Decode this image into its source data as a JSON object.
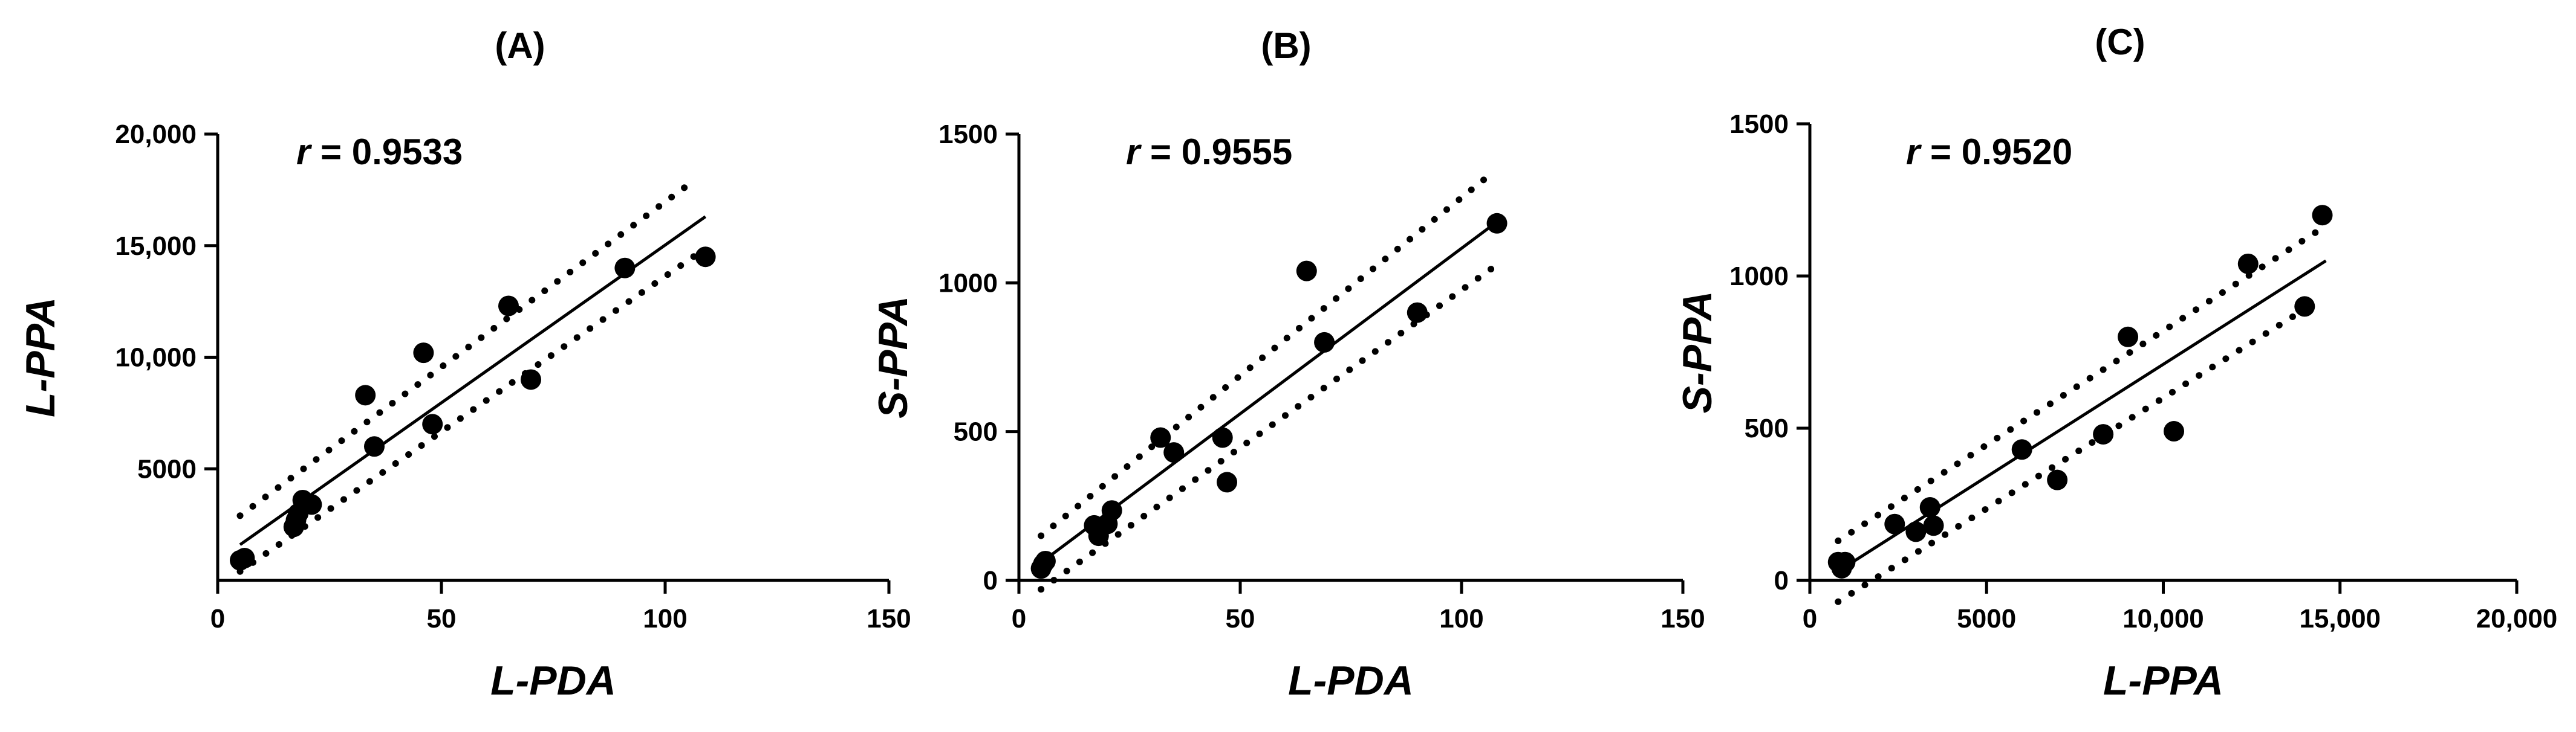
{
  "chart_data": [
    {
      "type": "scatter",
      "panel_label": "(A)",
      "annotation": {
        "var": "r",
        "text": " = 0.9533"
      },
      "xlabel": "L-PDA",
      "ylabel": "L-PPA",
      "xlim": [
        0,
        150
      ],
      "ylim": [
        0,
        20000
      ],
      "xticks": [
        0,
        50,
        100,
        150
      ],
      "xtick_labels": [
        "0",
        "50",
        "100",
        "150"
      ],
      "yticks": [
        5000,
        10000,
        15000,
        20000
      ],
      "ytick_labels": [
        "5000",
        "10,000",
        "15,000",
        "20,000"
      ],
      "points": [
        [
          5,
          900
        ],
        [
          6,
          1000
        ],
        [
          17,
          2400
        ],
        [
          17.5,
          2700
        ],
        [
          18,
          3000
        ],
        [
          19,
          3600
        ],
        [
          21,
          3400
        ],
        [
          33,
          8300
        ],
        [
          35,
          6000
        ],
        [
          46,
          10200
        ],
        [
          48,
          7000
        ],
        [
          65,
          12300
        ],
        [
          70,
          9000
        ],
        [
          91,
          14000
        ],
        [
          109,
          14500
        ]
      ],
      "fit": {
        "x": [
          5,
          109
        ],
        "y": [
          1600,
          16300
        ]
      },
      "ci_upper": {
        "x": [
          5,
          107
        ],
        "y": [
          2900,
          18000
        ]
      },
      "ci_lower": {
        "x": [
          5,
          107
        ],
        "y": [
          400,
          14600
        ]
      }
    },
    {
      "type": "scatter",
      "panel_label": "(B)",
      "annotation": {
        "var": "r",
        "text": " = 0.9555"
      },
      "xlabel": "L-PDA",
      "ylabel": "S-PPA",
      "xlim": [
        0,
        150
      ],
      "ylim": [
        0,
        1500
      ],
      "xticks": [
        0,
        50,
        100,
        150
      ],
      "xtick_labels": [
        "0",
        "50",
        "100",
        "150"
      ],
      "yticks": [
        0,
        500,
        1000,
        1500
      ],
      "ytick_labels": [
        "0",
        "500",
        "1000",
        "1500"
      ],
      "points": [
        [
          5,
          40
        ],
        [
          5.5,
          55
        ],
        [
          6,
          65
        ],
        [
          17,
          185
        ],
        [
          18,
          150
        ],
        [
          20,
          190
        ],
        [
          21,
          235
        ],
        [
          32,
          480
        ],
        [
          35,
          430
        ],
        [
          46,
          480
        ],
        [
          47,
          330
        ],
        [
          65,
          1040
        ],
        [
          69,
          800
        ],
        [
          90,
          900
        ],
        [
          108,
          1200
        ]
      ],
      "fit": {
        "x": [
          5,
          108
        ],
        "y": [
          60,
          1205
        ]
      },
      "ci_upper": {
        "x": [
          5,
          107
        ],
        "y": [
          150,
          1370
        ]
      },
      "ci_lower": {
        "x": [
          5,
          107
        ],
        "y": [
          -30,
          1050
        ]
      }
    },
    {
      "type": "scatter",
      "panel_label": "(C)",
      "annotation": {
        "var": "r",
        "text": " = 0.9520"
      },
      "xlabel": "L-PPA",
      "ylabel": "S-PPA",
      "xlim": [
        0,
        20000
      ],
      "ylim": [
        0,
        1500
      ],
      "xticks": [
        0,
        5000,
        10000,
        15000,
        20000
      ],
      "xtick_labels": [
        "0",
        "5000",
        "10,000",
        "15,000",
        "20,000"
      ],
      "yticks": [
        0,
        500,
        1000,
        1500
      ],
      "ytick_labels": [
        "0",
        "500",
        "1000",
        "1500"
      ],
      "points": [
        [
          800,
          60
        ],
        [
          900,
          40
        ],
        [
          1000,
          60
        ],
        [
          2400,
          185
        ],
        [
          3000,
          160
        ],
        [
          3400,
          240
        ],
        [
          3500,
          180
        ],
        [
          6000,
          430
        ],
        [
          7000,
          330
        ],
        [
          8300,
          480
        ],
        [
          9000,
          800
        ],
        [
          10300,
          490
        ],
        [
          12400,
          1040
        ],
        [
          14000,
          900
        ],
        [
          14500,
          1200
        ]
      ],
      "fit": {
        "x": [
          800,
          14600
        ],
        "y": [
          30,
          1050
        ]
      },
      "ci_upper": {
        "x": [
          800,
          14400
        ],
        "y": [
          130,
          1150
        ]
      },
      "ci_lower": {
        "x": [
          800,
          14400
        ],
        "y": [
          -70,
          920
        ]
      }
    }
  ]
}
